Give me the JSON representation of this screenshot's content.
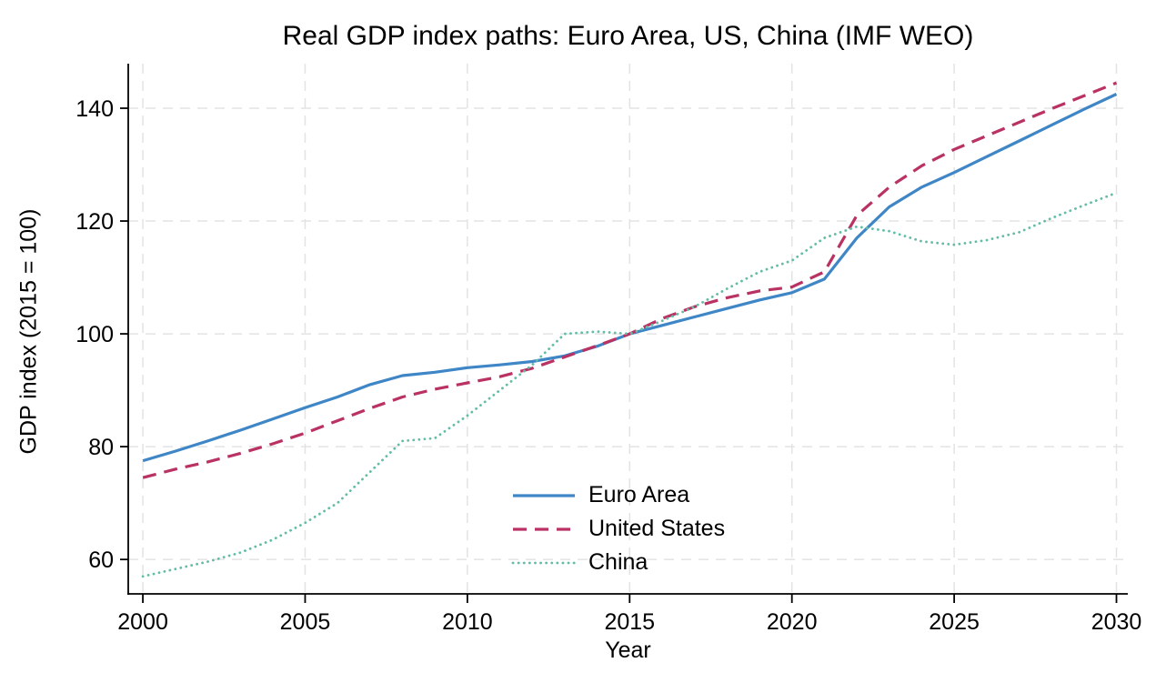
{
  "title": "Real GDP index paths: Euro Area, US, China (IMF WEO)",
  "x_axis": {
    "label": "Year",
    "ticks": [
      2000,
      2005,
      2010,
      2015,
      2020,
      2025,
      2030
    ]
  },
  "y_axis": {
    "label": "GDP index (2015 = 100)",
    "ticks": [
      60,
      80,
      100,
      120,
      140
    ]
  },
  "colors": {
    "grid": "#e3e3e3",
    "axis": "#000000"
  },
  "chart_data": {
    "type": "line",
    "title": "Real GDP index paths: Euro Area, US, China (IMF WEO)",
    "xlabel": "Year",
    "ylabel": "GDP index (2015 = 100)",
    "grid": true,
    "legend_position": "inside-bottom-center",
    "xlim": [
      1999.55,
      2030.35
    ],
    "ylim": [
      53.9,
      147.9
    ],
    "x": [
      2000,
      2001,
      2002,
      2003,
      2004,
      2005,
      2006,
      2007,
      2008,
      2009,
      2010,
      2011,
      2012,
      2013,
      2014,
      2015,
      2016,
      2017,
      2018,
      2019,
      2020,
      2021,
      2022,
      2023,
      2024,
      2025,
      2026,
      2027,
      2028,
      2029,
      2030
    ],
    "series": [
      {
        "name": "Euro Area",
        "color": "#3f86c6",
        "style": "solid",
        "values": [
          77.5,
          79.2,
          81.0,
          82.9,
          84.9,
          86.9,
          88.8,
          91.0,
          92.6,
          93.2,
          94.0,
          94.5,
          95.1,
          96.1,
          97.8,
          100.0,
          101.5,
          103.0,
          104.5,
          106.0,
          107.3,
          109.7,
          117.0,
          122.5,
          126.0,
          128.6,
          131.4,
          134.2,
          137.0,
          139.8,
          142.5
        ]
      },
      {
        "name": "United States",
        "color": "#b93263",
        "style": "dashed",
        "values": [
          74.5,
          76.0,
          77.3,
          78.8,
          80.5,
          82.4,
          84.6,
          86.8,
          88.8,
          90.2,
          91.3,
          92.4,
          93.9,
          95.9,
          97.9,
          100.0,
          102.7,
          104.8,
          106.4,
          107.6,
          108.3,
          111.0,
          121.0,
          126.0,
          129.8,
          132.7,
          135.1,
          137.5,
          139.9,
          142.2,
          144.5
        ]
      },
      {
        "name": "China",
        "color": "#63bda6",
        "style": "dotted",
        "values": [
          57.0,
          58.3,
          59.6,
          61.2,
          63.5,
          66.5,
          70.0,
          75.5,
          81.0,
          81.5,
          85.5,
          90.0,
          94.5,
          100.0,
          100.4,
          100.0,
          102.3,
          104.8,
          108.0,
          111.0,
          113.0,
          117.0,
          119.0,
          118.2,
          116.4,
          115.8,
          116.6,
          118.0,
          120.5,
          122.8,
          125.0
        ]
      }
    ]
  }
}
